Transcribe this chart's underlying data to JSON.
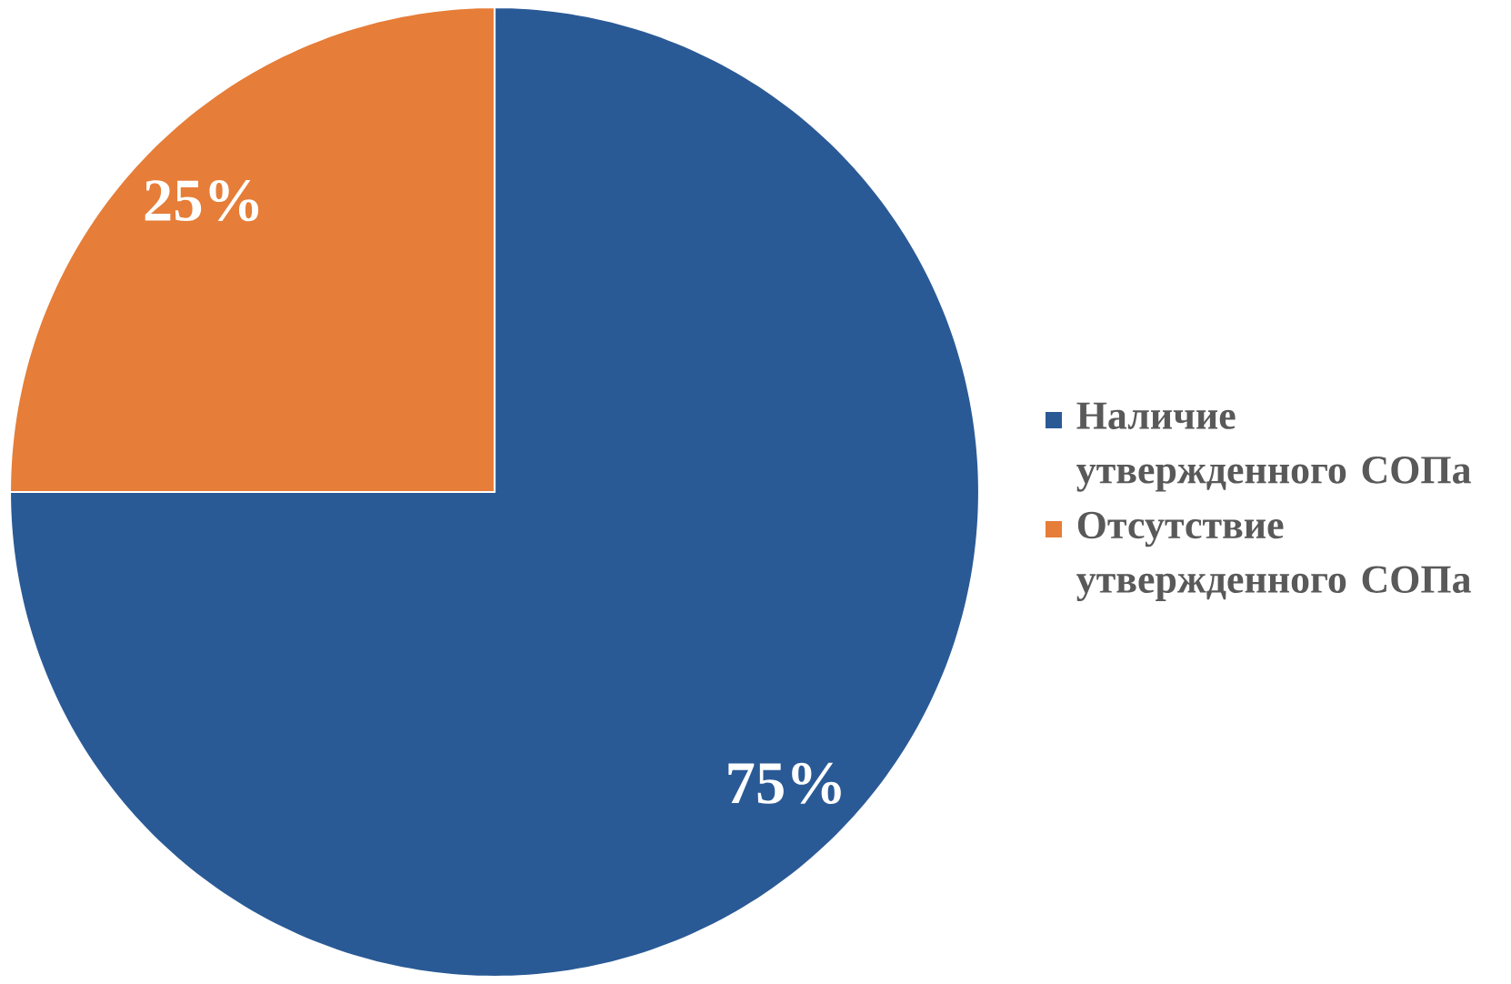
{
  "chart_data": {
    "type": "pie",
    "categories": [
      "Наличие утвержденного СОПа",
      "Отсутствие утвержденного СОПа"
    ],
    "values": [
      75,
      25
    ],
    "colors": [
      "#2a5a96",
      "#e67d38"
    ],
    "value_labels": [
      "75%",
      "25%"
    ],
    "legend": "right"
  }
}
